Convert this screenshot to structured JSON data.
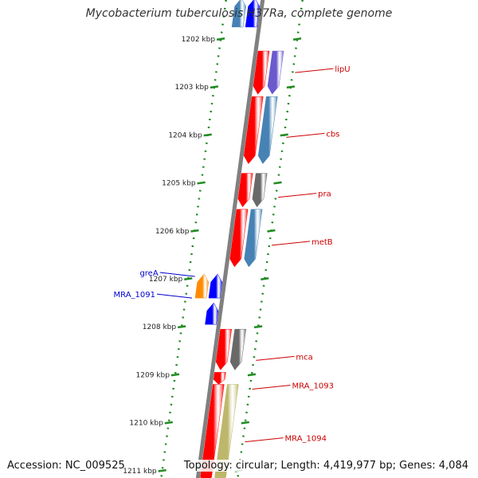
{
  "title": "Mycobacterium tuberculosis H37Ra, complete genome",
  "footer": {
    "accession": "Accession: NC_009525",
    "info": "Topology: circular; Length: 4,419,977 bp; Genes: 4,084"
  },
  "colors": {
    "red": "#ff0000",
    "steel_blue": "#4682b4",
    "purple": "#6a5acd",
    "gray": "#696969",
    "khaki": "#bdb76b",
    "orange": "#ff8c00",
    "blue": "#0000ff",
    "backbone": "#808080",
    "tick": "#228b22",
    "forward_label": "#cc0000",
    "reverse_label": "#0000cc"
  },
  "axis": {
    "unit": "kbp",
    "ticks": [
      {
        "kbp": 1202,
        "label": "1202 kbp"
      },
      {
        "kbp": 1203,
        "label": "1203 kbp"
      },
      {
        "kbp": 1204,
        "label": "1204 kbp"
      },
      {
        "kbp": 1205,
        "label": "1205 kbp"
      },
      {
        "kbp": 1206,
        "label": "1206 kbp"
      },
      {
        "kbp": 1207,
        "label": "1207 kbp"
      },
      {
        "kbp": 1208,
        "label": "1208 kbp"
      },
      {
        "kbp": 1209,
        "label": "1209 kbp"
      },
      {
        "kbp": 1210,
        "label": "1210 kbp"
      },
      {
        "kbp": 1211,
        "label": "1211 kbp"
      }
    ]
  },
  "features": [
    {
      "track": "reverse-cds",
      "start": 1201.15,
      "end": 1201.75,
      "color": "blue",
      "strand": "-"
    },
    {
      "track": "reverse-gene",
      "start": 1201.15,
      "end": 1201.75,
      "color": "steel_blue",
      "strand": "-"
    },
    {
      "track": "forward-gene",
      "start": 1202.25,
      "end": 1203.15,
      "color": "red",
      "strand": "+"
    },
    {
      "track": "forward-cds",
      "start": 1202.25,
      "end": 1203.15,
      "color": "purple",
      "strand": "+"
    },
    {
      "track": "forward-gene",
      "start": 1203.2,
      "end": 1204.6,
      "color": "red",
      "strand": "+"
    },
    {
      "track": "forward-cds",
      "start": 1203.2,
      "end": 1204.6,
      "color": "steel_blue",
      "strand": "+"
    },
    {
      "track": "forward-gene",
      "start": 1204.8,
      "end": 1205.5,
      "color": "red",
      "strand": "+"
    },
    {
      "track": "forward-cds",
      "start": 1204.8,
      "end": 1205.5,
      "color": "gray",
      "strand": "+"
    },
    {
      "track": "forward-gene",
      "start": 1205.55,
      "end": 1206.75,
      "color": "red",
      "strand": "+"
    },
    {
      "track": "forward-cds",
      "start": 1205.55,
      "end": 1206.75,
      "color": "steel_blue",
      "strand": "+"
    },
    {
      "track": "reverse-gene",
      "start": 1206.9,
      "end": 1207.4,
      "color": "orange",
      "strand": "-"
    },
    {
      "track": "reverse-cds",
      "start": 1206.9,
      "end": 1207.4,
      "color": "blue",
      "strand": "-"
    },
    {
      "track": "reverse-cds",
      "start": 1207.5,
      "end": 1207.95,
      "color": "blue",
      "strand": "-"
    },
    {
      "track": "forward-gene",
      "start": 1208.05,
      "end": 1208.9,
      "color": "red",
      "strand": "+"
    },
    {
      "track": "forward-cds",
      "start": 1208.05,
      "end": 1208.9,
      "color": "gray",
      "strand": "+"
    },
    {
      "track": "forward-gene",
      "start": 1208.95,
      "end": 1209.2,
      "color": "red",
      "strand": "+"
    },
    {
      "track": "forward-gene",
      "start": 1209.2,
      "end": 1211.3,
      "color": "red",
      "strand": "+"
    },
    {
      "track": "forward-cds",
      "start": 1209.2,
      "end": 1211.3,
      "color": "khaki",
      "strand": "+"
    }
  ],
  "labels": [
    {
      "text": "lipU",
      "kbp": 1202.7,
      "side": "right"
    },
    {
      "text": "cbs",
      "kbp": 1204.05,
      "side": "right"
    },
    {
      "text": "pra",
      "kbp": 1205.3,
      "side": "right"
    },
    {
      "text": "metB",
      "kbp": 1206.3,
      "side": "right"
    },
    {
      "text": "greA",
      "kbp": 1206.95,
      "side": "left"
    },
    {
      "text": "MRA_1091",
      "kbp": 1207.4,
      "side": "left"
    },
    {
      "text": "mca",
      "kbp": 1208.7,
      "side": "right"
    },
    {
      "text": "MRA_1093",
      "kbp": 1209.3,
      "side": "right"
    },
    {
      "text": "MRA_1094",
      "kbp": 1210.4,
      "side": "right"
    }
  ]
}
